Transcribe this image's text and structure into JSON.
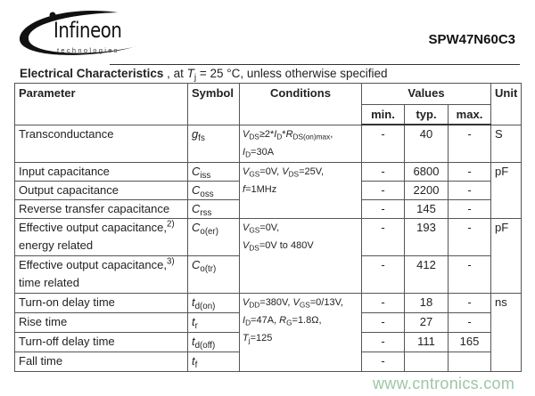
{
  "header": {
    "logo": {
      "word": "Infineon",
      "sub": "technologies"
    },
    "part_number": "SPW47N60C3"
  },
  "title": {
    "bold": "Electrical Characteristics",
    "pre": " , at ",
    "t": "T",
    "t_sub": "j",
    "post": " = 25 °C, unless otherwise specified"
  },
  "table": {
    "headers": {
      "parameter": "Parameter",
      "symbol": "Symbol",
      "conditions": "Conditions",
      "values": "Values",
      "unit": "Unit",
      "min": "min.",
      "typ": "typ.",
      "max": "max."
    },
    "rows": [
      {
        "parameter": "Transconductance",
        "sym": "g",
        "sym_sub": "fs",
        "min": "-",
        "typ": "40",
        "max": "-"
      },
      {
        "parameter": "Input capacitance",
        "sym": "C",
        "sym_sub": "iss",
        "min": "-",
        "typ": "6800",
        "max": "-"
      },
      {
        "parameter": "Output capacitance",
        "sym": "C",
        "sym_sub": "oss",
        "min": "-",
        "typ": "2200",
        "max": "-"
      },
      {
        "parameter": "Reverse transfer capacitance",
        "sym": "C",
        "sym_sub": "rss",
        "min": "-",
        "typ": "145",
        "max": "-"
      },
      {
        "parameter": "Effective output capacitance,",
        "note": "2)",
        "parameter2": "energy related",
        "sym": "C",
        "sym_sub": "o(er)",
        "min": "-",
        "typ": "193",
        "max": "-"
      },
      {
        "parameter": "Effective output capacitance,",
        "note": "3)",
        "parameter2": "time related",
        "sym": "C",
        "sym_sub": "o(tr)",
        "min": "-",
        "typ": "412",
        "max": "-"
      },
      {
        "parameter": "Turn-on delay time",
        "sym": "t",
        "sym_sub": "d(on)",
        "min": "-",
        "typ": "18",
        "max": "-"
      },
      {
        "parameter": "Rise time",
        "sym": "t",
        "sym_sub": "r",
        "min": "-",
        "typ": "27",
        "max": "-"
      },
      {
        "parameter": "Turn-off delay time",
        "sym": "t",
        "sym_sub": "d(off)",
        "min": "-",
        "typ": "111",
        "max": "165"
      },
      {
        "parameter": "Fall time",
        "sym": "t",
        "sym_sub": "f",
        "min": "-",
        "typ": "",
        "max": ""
      }
    ],
    "conditions": {
      "transconductance": [
        [
          [
            "V",
            "i"
          ],
          [
            "DS",
            "sub"
          ],
          [
            "≥2*",
            ""
          ],
          [
            "I",
            "i"
          ],
          [
            "D",
            "sub"
          ],
          [
            "*",
            ""
          ],
          [
            "R",
            "i"
          ],
          [
            "DS(on)max",
            "sub"
          ],
          [
            ",",
            ""
          ]
        ],
        [
          [
            "I",
            "i"
          ],
          [
            "D",
            "sub"
          ],
          [
            "=30A",
            ""
          ]
        ]
      ],
      "capacitance": [
        [
          [
            "V",
            "i"
          ],
          [
            "GS",
            "sub"
          ],
          [
            "=0V, ",
            ""
          ],
          [
            "V",
            "i"
          ],
          [
            "DS",
            "sub"
          ],
          [
            "=25V,",
            ""
          ]
        ],
        [
          [
            "f",
            "i"
          ],
          [
            "=1MHz",
            ""
          ]
        ]
      ],
      "effective": [
        [
          [
            "V",
            "i"
          ],
          [
            "GS",
            "sub"
          ],
          [
            "=0V,",
            ""
          ]
        ],
        [
          [
            "V",
            "i"
          ],
          [
            "DS",
            "sub"
          ],
          [
            "=0V to 480V",
            ""
          ]
        ]
      ],
      "switching": [
        [
          [
            "V",
            "i"
          ],
          [
            "DD",
            "sub"
          ],
          [
            "=380V, ",
            ""
          ],
          [
            "V",
            "i"
          ],
          [
            "GS",
            "sub"
          ],
          [
            "=0/13V,",
            ""
          ]
        ],
        [
          [
            "I",
            "i"
          ],
          [
            "D",
            "sub"
          ],
          [
            "=47A, ",
            ""
          ],
          [
            "R",
            "i"
          ],
          [
            "G",
            "sub"
          ],
          [
            "=1.8Ω,",
            ""
          ]
        ],
        [
          [
            "T",
            "i"
          ],
          [
            "j",
            "sub"
          ],
          [
            "=125",
            ""
          ]
        ]
      ]
    },
    "units": {
      "transconductance": "S",
      "capacitance": "pF",
      "effective": "pF",
      "switching": "ns"
    }
  },
  "watermark": "www.cntronics.com"
}
